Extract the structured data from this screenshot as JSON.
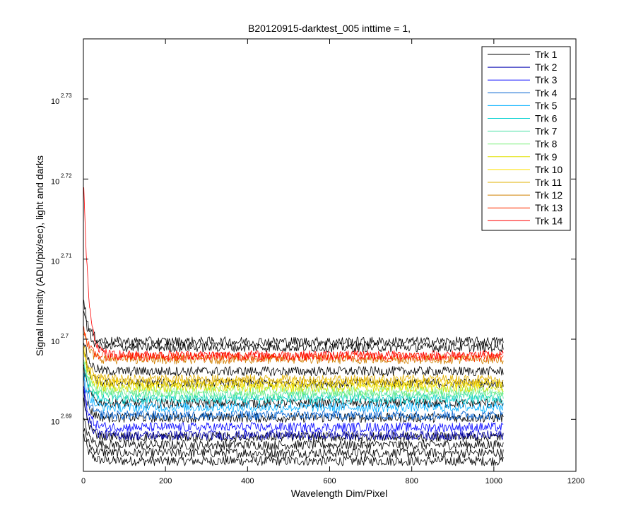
{
  "chart_data": {
    "type": "line",
    "title": "B20120915-darktest_005 inttime = 1,",
    "xlabel": "Wavelength Dim/Pixel",
    "ylabel": "Signal Intensity (ADU/pix/sec), light and darks",
    "xlim": [
      0,
      1200
    ],
    "ylim_log10": [
      2.6835,
      2.7375
    ],
    "yscale": "log",
    "x_ticks": [
      "0",
      "200",
      "400",
      "600",
      "800",
      "1000",
      "1200"
    ],
    "y_ticks": [
      {
        "base": "10",
        "exp": "2.69",
        "value_log10": 2.69
      },
      {
        "base": "10",
        "exp": "2.7",
        "value_log10": 2.7
      },
      {
        "base": "10",
        "exp": "2.71",
        "value_log10": 2.71
      },
      {
        "base": "10",
        "exp": "2.72",
        "value_log10": 2.72
      },
      {
        "base": "10",
        "exp": "2.73",
        "value_log10": 2.73
      }
    ],
    "grid": false,
    "legend_position": "top-right",
    "x_range_data": [
      1,
      1024
    ],
    "series": [
      {
        "name": "Trk 1",
        "color": "#000000",
        "plateau_log10": 2.6878,
        "start_log10": 2.6925
      },
      {
        "name": "Trk 2",
        "color": "#0000B0",
        "plateau_log10": 2.688,
        "start_log10": 2.6935
      },
      {
        "name": "Trk 3",
        "color": "#0000FF",
        "plateau_log10": 2.689,
        "start_log10": 2.694
      },
      {
        "name": "Trk 4",
        "color": "#0060D0",
        "plateau_log10": 2.6905,
        "start_log10": 2.695
      },
      {
        "name": "Trk 5",
        "color": "#00B0FF",
        "plateau_log10": 2.6915,
        "start_log10": 2.696
      },
      {
        "name": "Trk 6",
        "color": "#00D0D0",
        "plateau_log10": 2.6925,
        "start_log10": 2.697
      },
      {
        "name": "Trk 7",
        "color": "#40E0A0",
        "plateau_log10": 2.693,
        "start_log10": 2.6975
      },
      {
        "name": "Trk 8",
        "color": "#80F080",
        "plateau_log10": 2.6935,
        "start_log10": 2.698
      },
      {
        "name": "Trk 9",
        "color": "#E0E000",
        "plateau_log10": 2.694,
        "start_log10": 2.6985
      },
      {
        "name": "Trk 10",
        "color": "#FFE000",
        "plateau_log10": 2.6945,
        "start_log10": 2.699
      },
      {
        "name": "Trk 11",
        "color": "#E0B000",
        "plateau_log10": 2.695,
        "start_log10": 2.6995
      },
      {
        "name": "Trk 12",
        "color": "#D08000",
        "plateau_log10": 2.6975,
        "start_log10": 2.701
      },
      {
        "name": "Trk 13",
        "color": "#FF3000",
        "plateau_log10": 2.6978,
        "start_log10": 2.7015
      },
      {
        "name": "Trk 14",
        "color": "#FF0000",
        "plateau_log10": 2.698,
        "start_log10": 2.719
      }
    ],
    "dark_traces": [
      {
        "color": "#000000",
        "plateau_log10": 2.6848,
        "start_log10": 2.688
      },
      {
        "color": "#000000",
        "plateau_log10": 2.6858,
        "start_log10": 2.689
      },
      {
        "color": "#000000",
        "plateau_log10": 2.6868,
        "start_log10": 2.69
      },
      {
        "color": "#000000",
        "plateau_log10": 2.6902,
        "start_log10": 2.694
      },
      {
        "color": "#000000",
        "plateau_log10": 2.692,
        "start_log10": 2.6965
      },
      {
        "color": "#000000",
        "plateau_log10": 2.6945,
        "start_log10": 2.6985
      },
      {
        "color": "#000000",
        "plateau_log10": 2.696,
        "start_log10": 2.7
      },
      {
        "color": "#000000",
        "plateau_log10": 2.699,
        "start_log10": 2.704
      },
      {
        "color": "#000000",
        "plateau_log10": 2.6997,
        "start_log10": 2.705
      }
    ]
  }
}
